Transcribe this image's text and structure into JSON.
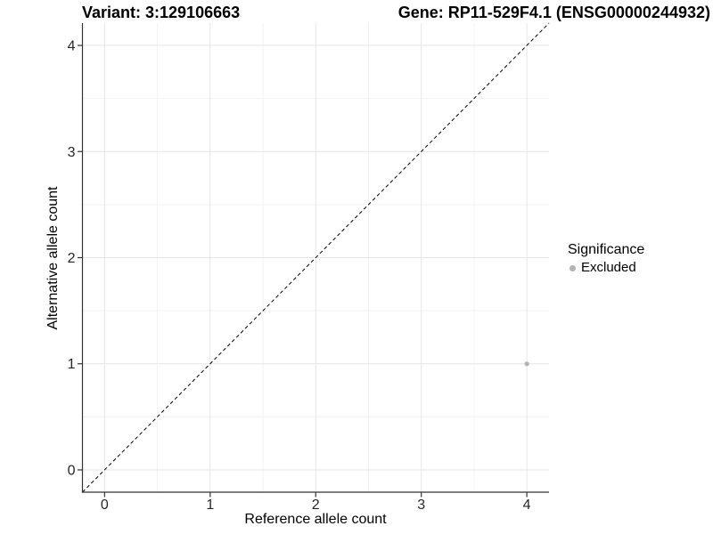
{
  "chart_data": {
    "type": "scatter",
    "title_left": "Variant: 3:129106663",
    "title_right": "Gene: RP11-529F4.1 (ENSG00000244932)",
    "xlabel": "Reference allele count",
    "ylabel": "Alternative allele count",
    "xlim": [
      -0.21,
      4.21
    ],
    "ylim": [
      -0.21,
      4.21
    ],
    "xticks": [
      0,
      1,
      2,
      3,
      4
    ],
    "yticks": [
      0,
      1,
      2,
      3,
      4
    ],
    "grid": {
      "major": true,
      "minor": true
    },
    "reference_line": {
      "type": "identity y=x",
      "style": "dashed",
      "color": "#000000"
    },
    "series": [
      {
        "name": "Excluded",
        "color": "#b3b3b3",
        "points": [
          {
            "x": 4,
            "y": 1
          }
        ]
      }
    ],
    "legend": {
      "title": "Significance",
      "position": "right",
      "items": [
        {
          "label": "Excluded",
          "color": "#b3b3b3",
          "marker": "circle"
        }
      ]
    }
  },
  "colors": {
    "background": "#ffffff",
    "grid_major": "#e6e6e6",
    "grid_minor": "#f2f2f2",
    "axis": "#333333",
    "tick_text": "#262626",
    "title_text": "#000000"
  }
}
